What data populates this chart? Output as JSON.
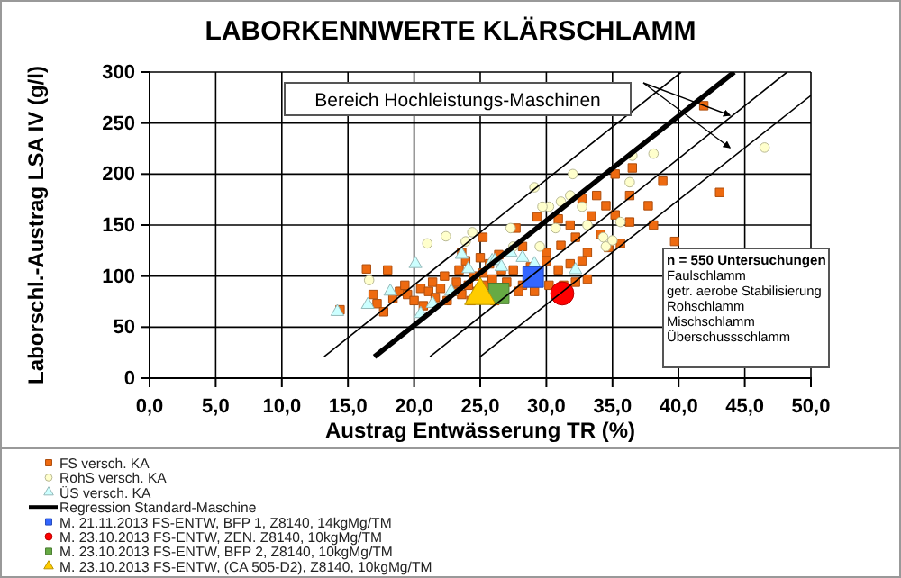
{
  "chart_data": {
    "type": "scatter",
    "title": "LABORKENNWERTE KLÄRSCHLAMM",
    "xlabel": "Austrag Entwässerung TR (%)",
    "ylabel": "Laborschl.-Austrag LSA IV (g/l)",
    "xlim": [
      0,
      50
    ],
    "ylim": [
      0,
      300
    ],
    "xticks": [
      {
        "value": 0,
        "label": "0,0"
      },
      {
        "value": 5,
        "label": "5,0"
      },
      {
        "value": 10,
        "label": "10,0"
      },
      {
        "value": 15,
        "label": "15,0"
      },
      {
        "value": 20,
        "label": "20,0"
      },
      {
        "value": 25,
        "label": "25,0"
      },
      {
        "value": 30,
        "label": "30,0"
      },
      {
        "value": 35,
        "label": "35,0"
      },
      {
        "value": 40,
        "label": "40,0"
      },
      {
        "value": 45,
        "label": "45,0"
      },
      {
        "value": 50,
        "label": "50,0"
      }
    ],
    "yticks": [
      0,
      50,
      100,
      150,
      200,
      250,
      300
    ],
    "grid": true,
    "legend": "bottom",
    "annotations": [
      "Bereich Hochleistungs-Maschinen",
      "n = 550 Untersuchungen",
      "Faulschlamm",
      "getr. aerobe Stabilisierung",
      "Rohschlamm",
      "Mischschlamm",
      "Überschussschlamm"
    ],
    "series": [
      {
        "name": "FS versch. KA",
        "marker": "square",
        "color": "#ee6a10",
        "x": [
          14.4,
          16.4,
          16.9,
          18.0,
          17.2,
          17.7,
          18.4,
          18.9,
          19.3,
          19.5,
          20.0,
          20.5,
          20.7,
          21.1,
          21.4,
          21.6,
          22.0,
          22.3,
          22.5,
          23.0,
          23.2,
          23.4,
          23.6,
          23.9,
          24.1,
          24.3,
          24.5,
          24.8,
          25.0,
          25.2,
          25.4,
          25.7,
          25.9,
          26.1,
          26.4,
          26.6,
          25.2,
          23.6,
          41.9,
          36.5,
          35.2,
          38.8,
          43.1,
          36.3,
          33.8,
          32.7,
          34.5,
          37.7,
          35.2,
          33.4,
          36.3,
          38.1,
          31.8,
          30.9,
          29.3,
          34.1,
          35.6,
          34.7,
          39.7,
          32.2,
          31.1,
          30.0,
          33.1,
          28.2,
          27.7,
          31.8,
          30.0,
          28.8,
          30.9,
          27.5,
          32.7,
          33.1,
          32.2,
          30.2,
          28.2,
          27.0,
          29.1,
          27.9,
          25.9,
          31.3
        ],
        "values": [
          67,
          107,
          82,
          106,
          73,
          65,
          78,
          85,
          91,
          82,
          76,
          88,
          71,
          85,
          94,
          79,
          88,
          100,
          76,
          85,
          94,
          106,
          82,
          115,
          91,
          76,
          100,
          85,
          118,
          103,
          91,
          112,
          97,
          76,
          121,
          106,
          138,
          123,
          267,
          206,
          200,
          193,
          182,
          179,
          179,
          176,
          169,
          169,
          160,
          159,
          153,
          150,
          150,
          156,
          158,
          141,
          132,
          128,
          134,
          138,
          130,
          123,
          123,
          129,
          147,
          112,
          115,
          109,
          106,
          106,
          115,
          97,
          94,
          91,
          91,
          94,
          85,
          85,
          97,
          91
        ]
      },
      {
        "name": "RohS versch. KA",
        "marker": "circle",
        "color": "#ffffcc",
        "x": [
          16.6,
          21.0,
          22.4,
          24.4,
          23.9,
          46.5,
          38.1,
          36.5,
          32.0,
          36.3,
          29.1,
          31.1,
          31.8,
          32.7,
          30.2,
          29.7,
          30.7,
          33.1,
          35.6,
          34.5,
          29.5,
          27.5,
          27.3,
          34.3,
          35.0
        ],
        "values": [
          96,
          132,
          139,
          143,
          134,
          226,
          220,
          218,
          200,
          192,
          187,
          173,
          179,
          168,
          168,
          168,
          147,
          150,
          153,
          129,
          129,
          129,
          147,
          138,
          135
        ]
      },
      {
        "name": "ÜS versch. KA",
        "marker": "triangle",
        "color": "#ccffff",
        "x": [
          14.2,
          16.5,
          18.2,
          20.1,
          20.5,
          21.4,
          22.8,
          23.6,
          24.1,
          25.9,
          28.2,
          29.1,
          32.2,
          27.3,
          26.1,
          26.6
        ],
        "values": [
          65,
          72,
          85,
          112,
          63,
          73,
          85,
          121,
          107,
          115,
          118,
          112,
          106,
          123,
          115,
          109
        ]
      },
      {
        "name": "Regression Standard-Maschine",
        "type": "line",
        "marker": "none",
        "line_style": "solid",
        "color": "#000000",
        "x": [
          17.0,
          44.2
        ],
        "values": [
          21,
          300
        ]
      },
      {
        "type": "line",
        "marker": "none",
        "line_style": "solid",
        "color": "#000000",
        "x": [
          13.2,
          40.2
        ],
        "values": [
          21,
          300
        ]
      },
      {
        "type": "line",
        "marker": "none",
        "line_style": "solid",
        "color": "#000000",
        "x": [
          21.2,
          48.2
        ],
        "values": [
          21,
          300
        ]
      },
      {
        "type": "line",
        "marker": "none",
        "line_style": "solid",
        "color": "#000000",
        "x": [
          25.0,
          50.0
        ],
        "values": [
          21,
          277
        ]
      },
      {
        "name": "M. 21.11.2013 FS-ENTW, BFP 1, Z8140, 14kgMg/TM",
        "marker": "square",
        "color": "#3366ff",
        "x": [
          29.0
        ],
        "values": [
          99
        ]
      },
      {
        "name": "M. 23.10.2013 FS-ENTW, ZEN. Z8140, 10kgMg/TM",
        "marker": "circle",
        "color": "#ff0000",
        "x": [
          31.2
        ],
        "values": [
          83
        ]
      },
      {
        "name": "M. 23.10.2013 FS-ENTW, BFP 2, Z8140, 10kgMg/TM",
        "marker": "square",
        "color": "#66aa44",
        "x": [
          26.4
        ],
        "values": [
          83
        ]
      },
      {
        "name": "M. 23.10.2013 FS-ENTW, (CA 505-D2), Z8140, 10kgMg/TM",
        "marker": "triangle",
        "color": "#ffcc00",
        "x": [
          25.0
        ],
        "values": [
          81
        ]
      }
    ]
  }
}
